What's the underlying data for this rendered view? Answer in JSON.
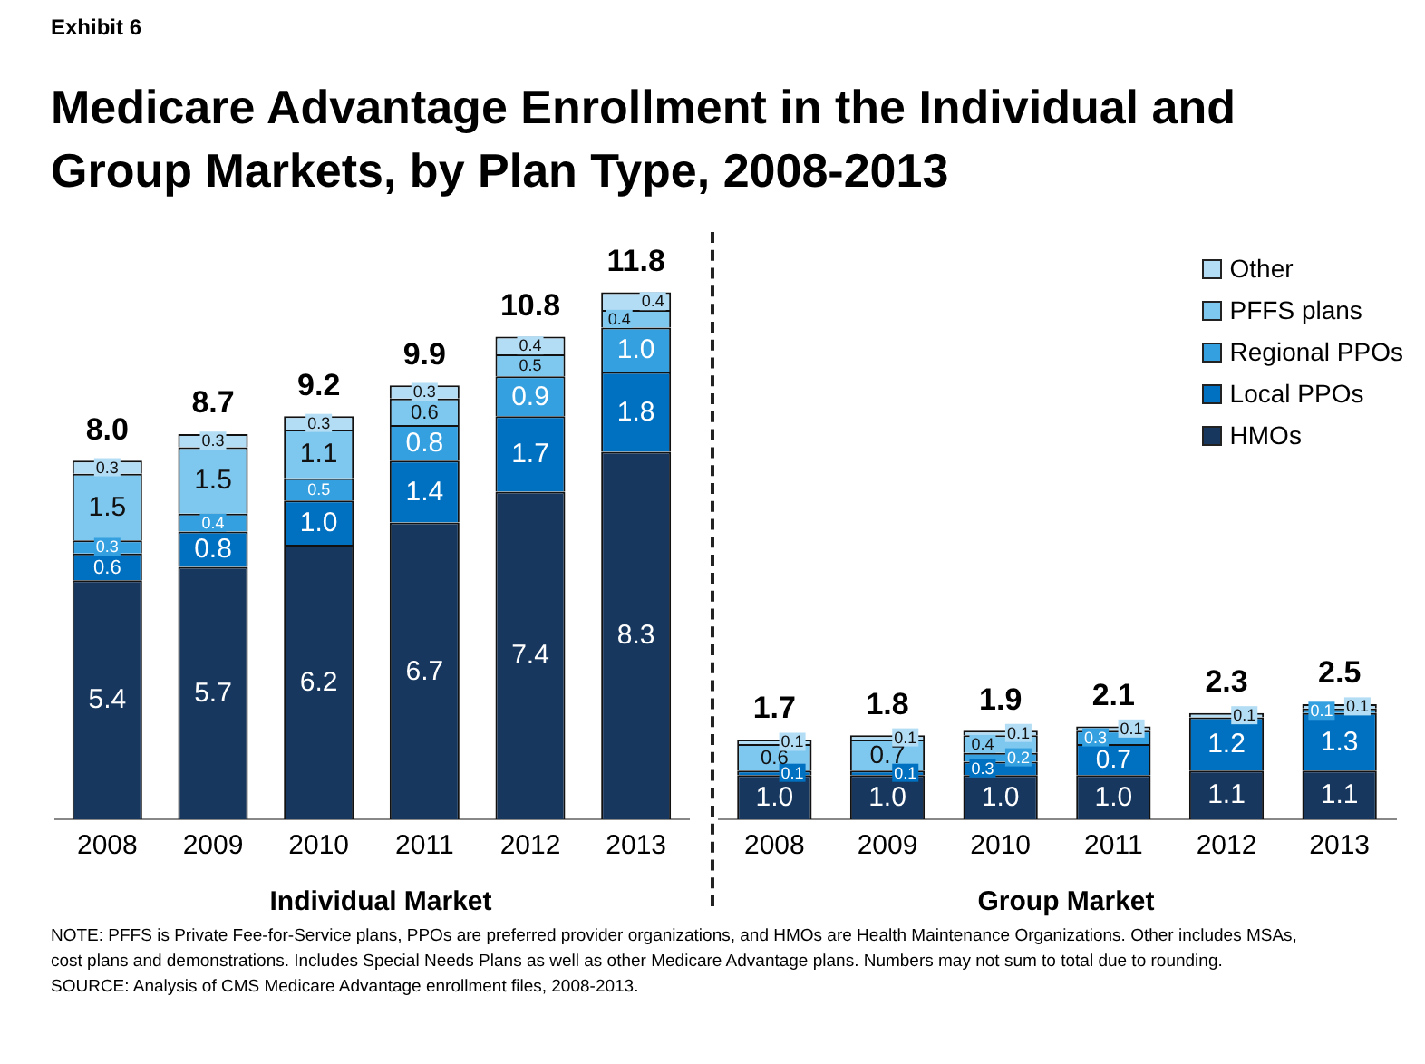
{
  "chart_data": [
    {
      "type": "bar",
      "stacked": true,
      "title": "Medicare Advantage Enrollment in the Individual and Group Markets, by Plan Type, 2008-2013",
      "xlabel": "Individual Market",
      "categories": [
        "2008",
        "2009",
        "2010",
        "2011",
        "2012",
        "2013"
      ],
      "legend": false,
      "grid": false,
      "series": [
        {
          "color": "#17375e",
          "values": [
            5.4,
            5.7,
            6.2,
            6.7,
            7.4,
            8.3
          ],
          "value_labels": [
            "5.4",
            "5.7",
            "6.2",
            "6.7",
            "7.4",
            "8.3"
          ]
        },
        {
          "color": "#0070c0",
          "values": [
            0.6,
            0.8,
            1.0,
            1.4,
            1.7,
            1.8
          ],
          "value_labels": [
            "0.6",
            "0.8",
            "1.0",
            "1.4",
            "1.7",
            "1.8"
          ]
        },
        {
          "color": "#35a0e0",
          "values": [
            0.3,
            0.4,
            0.5,
            0.8,
            0.9,
            1.0
          ],
          "value_labels": [
            "0.3",
            "0.4",
            "0.5",
            "0.8",
            "0.9",
            "1.0"
          ]
        },
        {
          "color": "#7ec8ef",
          "values": [
            1.5,
            1.5,
            1.1,
            0.6,
            0.5,
            0.4
          ],
          "value_labels": [
            "1.5",
            "1.5",
            "1.1",
            "0.6",
            "0.5",
            "0.4"
          ]
        },
        {
          "color": "#b3ddf5",
          "values": [
            0.3,
            0.3,
            0.3,
            0.3,
            0.4,
            0.4
          ],
          "value_labels": [
            "0.3",
            "0.3",
            "0.3",
            "0.3",
            "0.4",
            "0.4"
          ]
        }
      ],
      "totals": [
        "8.0",
        "8.7",
        "9.2",
        "9.9",
        "10.8",
        "11.8"
      ],
      "annotations": [
        "Exhibit 6",
        "NOTE:  PFFS is Private Fee-for-Service plans, PPOs are preferred provider organizations, and HMOs are Health Maintenance Organizations. Other includes MSAs, cost plans and demonstrations.  Includes Special Needs Plans as well as other Medicare Advantage plans.   Numbers may not sum to total due to rounding.",
        "SOURCE:  Analysis of CMS Medicare Advantage enrollment files, 2008-2013."
      ]
    },
    {
      "type": "bar",
      "stacked": true,
      "xlabel": "Group Market",
      "categories": [
        "2008",
        "2009",
        "2010",
        "2011",
        "2012",
        "2013"
      ],
      "legend": "top right",
      "grid": false,
      "series": [
        {
          "name": "HMOs",
          "color": "#17375e",
          "values": [
            1.0,
            1.0,
            1.0,
            1.0,
            1.1,
            1.1
          ],
          "value_labels": [
            "1.0",
            "1.0",
            "1.0",
            "1.0",
            "1.1",
            "1.1"
          ]
        },
        {
          "name": "Local PPOs",
          "color": "#0070c0",
          "values": [
            0.1,
            0.1,
            0.3,
            0.7,
            1.2,
            1.3
          ],
          "value_labels": [
            "0.1",
            "0.1",
            "0.3",
            "0.7",
            "1.2",
            "1.3"
          ]
        },
        {
          "name": "Regional PPOs",
          "color": "#35a0e0",
          "values": [
            null,
            null,
            0.2,
            0.3,
            null,
            0.1
          ],
          "value_labels": [
            null,
            null,
            "0.2",
            "0.3",
            null,
            "0.1"
          ]
        },
        {
          "name": "PFFS plans",
          "color": "#7ec8ef",
          "values": [
            0.6,
            0.7,
            0.4,
            null,
            null,
            null
          ],
          "value_labels": [
            "0.6",
            "0.7",
            "0.4",
            null,
            null,
            null
          ]
        },
        {
          "name": "Other",
          "color": "#b3ddf5",
          "values": [
            0.1,
            0.1,
            0.1,
            0.1,
            0.1,
            0.1
          ],
          "value_labels": [
            "0.1",
            "0.1",
            "0.1",
            "0.1",
            "0.1",
            "0.1"
          ]
        }
      ],
      "totals": [
        "1.7",
        "1.8",
        "1.9",
        "2.1",
        "2.3",
        "2.5"
      ]
    }
  ]
}
